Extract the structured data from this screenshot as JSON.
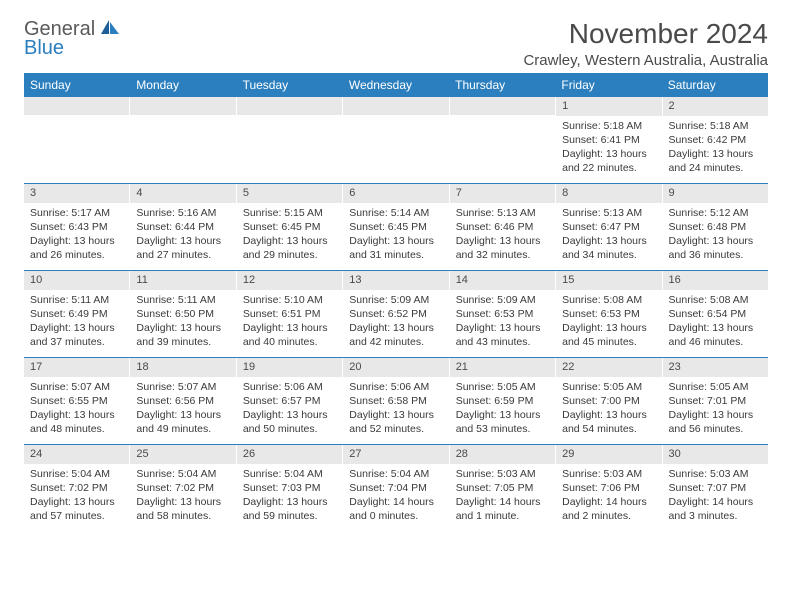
{
  "logo": {
    "top": "General",
    "bottom": "Blue"
  },
  "title": "November 2024",
  "location": "Crawley, Western Australia, Australia",
  "weekdays": [
    "Sunday",
    "Monday",
    "Tuesday",
    "Wednesday",
    "Thursday",
    "Friday",
    "Saturday"
  ],
  "colors": {
    "accent": "#2b7fbf",
    "daybar": "#e8e8e8",
    "text": "#333333"
  },
  "weeks": [
    [
      {
        "n": "",
        "sr": "",
        "ss": "",
        "dl1": "",
        "dl2": ""
      },
      {
        "n": "",
        "sr": "",
        "ss": "",
        "dl1": "",
        "dl2": ""
      },
      {
        "n": "",
        "sr": "",
        "ss": "",
        "dl1": "",
        "dl2": ""
      },
      {
        "n": "",
        "sr": "",
        "ss": "",
        "dl1": "",
        "dl2": ""
      },
      {
        "n": "",
        "sr": "",
        "ss": "",
        "dl1": "",
        "dl2": ""
      },
      {
        "n": "1",
        "sr": "Sunrise: 5:18 AM",
        "ss": "Sunset: 6:41 PM",
        "dl1": "Daylight: 13 hours",
        "dl2": "and 22 minutes."
      },
      {
        "n": "2",
        "sr": "Sunrise: 5:18 AM",
        "ss": "Sunset: 6:42 PM",
        "dl1": "Daylight: 13 hours",
        "dl2": "and 24 minutes."
      }
    ],
    [
      {
        "n": "3",
        "sr": "Sunrise: 5:17 AM",
        "ss": "Sunset: 6:43 PM",
        "dl1": "Daylight: 13 hours",
        "dl2": "and 26 minutes."
      },
      {
        "n": "4",
        "sr": "Sunrise: 5:16 AM",
        "ss": "Sunset: 6:44 PM",
        "dl1": "Daylight: 13 hours",
        "dl2": "and 27 minutes."
      },
      {
        "n": "5",
        "sr": "Sunrise: 5:15 AM",
        "ss": "Sunset: 6:45 PM",
        "dl1": "Daylight: 13 hours",
        "dl2": "and 29 minutes."
      },
      {
        "n": "6",
        "sr": "Sunrise: 5:14 AM",
        "ss": "Sunset: 6:45 PM",
        "dl1": "Daylight: 13 hours",
        "dl2": "and 31 minutes."
      },
      {
        "n": "7",
        "sr": "Sunrise: 5:13 AM",
        "ss": "Sunset: 6:46 PM",
        "dl1": "Daylight: 13 hours",
        "dl2": "and 32 minutes."
      },
      {
        "n": "8",
        "sr": "Sunrise: 5:13 AM",
        "ss": "Sunset: 6:47 PM",
        "dl1": "Daylight: 13 hours",
        "dl2": "and 34 minutes."
      },
      {
        "n": "9",
        "sr": "Sunrise: 5:12 AM",
        "ss": "Sunset: 6:48 PM",
        "dl1": "Daylight: 13 hours",
        "dl2": "and 36 minutes."
      }
    ],
    [
      {
        "n": "10",
        "sr": "Sunrise: 5:11 AM",
        "ss": "Sunset: 6:49 PM",
        "dl1": "Daylight: 13 hours",
        "dl2": "and 37 minutes."
      },
      {
        "n": "11",
        "sr": "Sunrise: 5:11 AM",
        "ss": "Sunset: 6:50 PM",
        "dl1": "Daylight: 13 hours",
        "dl2": "and 39 minutes."
      },
      {
        "n": "12",
        "sr": "Sunrise: 5:10 AM",
        "ss": "Sunset: 6:51 PM",
        "dl1": "Daylight: 13 hours",
        "dl2": "and 40 minutes."
      },
      {
        "n": "13",
        "sr": "Sunrise: 5:09 AM",
        "ss": "Sunset: 6:52 PM",
        "dl1": "Daylight: 13 hours",
        "dl2": "and 42 minutes."
      },
      {
        "n": "14",
        "sr": "Sunrise: 5:09 AM",
        "ss": "Sunset: 6:53 PM",
        "dl1": "Daylight: 13 hours",
        "dl2": "and 43 minutes."
      },
      {
        "n": "15",
        "sr": "Sunrise: 5:08 AM",
        "ss": "Sunset: 6:53 PM",
        "dl1": "Daylight: 13 hours",
        "dl2": "and 45 minutes."
      },
      {
        "n": "16",
        "sr": "Sunrise: 5:08 AM",
        "ss": "Sunset: 6:54 PM",
        "dl1": "Daylight: 13 hours",
        "dl2": "and 46 minutes."
      }
    ],
    [
      {
        "n": "17",
        "sr": "Sunrise: 5:07 AM",
        "ss": "Sunset: 6:55 PM",
        "dl1": "Daylight: 13 hours",
        "dl2": "and 48 minutes."
      },
      {
        "n": "18",
        "sr": "Sunrise: 5:07 AM",
        "ss": "Sunset: 6:56 PM",
        "dl1": "Daylight: 13 hours",
        "dl2": "and 49 minutes."
      },
      {
        "n": "19",
        "sr": "Sunrise: 5:06 AM",
        "ss": "Sunset: 6:57 PM",
        "dl1": "Daylight: 13 hours",
        "dl2": "and 50 minutes."
      },
      {
        "n": "20",
        "sr": "Sunrise: 5:06 AM",
        "ss": "Sunset: 6:58 PM",
        "dl1": "Daylight: 13 hours",
        "dl2": "and 52 minutes."
      },
      {
        "n": "21",
        "sr": "Sunrise: 5:05 AM",
        "ss": "Sunset: 6:59 PM",
        "dl1": "Daylight: 13 hours",
        "dl2": "and 53 minutes."
      },
      {
        "n": "22",
        "sr": "Sunrise: 5:05 AM",
        "ss": "Sunset: 7:00 PM",
        "dl1": "Daylight: 13 hours",
        "dl2": "and 54 minutes."
      },
      {
        "n": "23",
        "sr": "Sunrise: 5:05 AM",
        "ss": "Sunset: 7:01 PM",
        "dl1": "Daylight: 13 hours",
        "dl2": "and 56 minutes."
      }
    ],
    [
      {
        "n": "24",
        "sr": "Sunrise: 5:04 AM",
        "ss": "Sunset: 7:02 PM",
        "dl1": "Daylight: 13 hours",
        "dl2": "and 57 minutes."
      },
      {
        "n": "25",
        "sr": "Sunrise: 5:04 AM",
        "ss": "Sunset: 7:02 PM",
        "dl1": "Daylight: 13 hours",
        "dl2": "and 58 minutes."
      },
      {
        "n": "26",
        "sr": "Sunrise: 5:04 AM",
        "ss": "Sunset: 7:03 PM",
        "dl1": "Daylight: 13 hours",
        "dl2": "and 59 minutes."
      },
      {
        "n": "27",
        "sr": "Sunrise: 5:04 AM",
        "ss": "Sunset: 7:04 PM",
        "dl1": "Daylight: 14 hours",
        "dl2": "and 0 minutes."
      },
      {
        "n": "28",
        "sr": "Sunrise: 5:03 AM",
        "ss": "Sunset: 7:05 PM",
        "dl1": "Daylight: 14 hours",
        "dl2": "and 1 minute."
      },
      {
        "n": "29",
        "sr": "Sunrise: 5:03 AM",
        "ss": "Sunset: 7:06 PM",
        "dl1": "Daylight: 14 hours",
        "dl2": "and 2 minutes."
      },
      {
        "n": "30",
        "sr": "Sunrise: 5:03 AM",
        "ss": "Sunset: 7:07 PM",
        "dl1": "Daylight: 14 hours",
        "dl2": "and 3 minutes."
      }
    ]
  ]
}
